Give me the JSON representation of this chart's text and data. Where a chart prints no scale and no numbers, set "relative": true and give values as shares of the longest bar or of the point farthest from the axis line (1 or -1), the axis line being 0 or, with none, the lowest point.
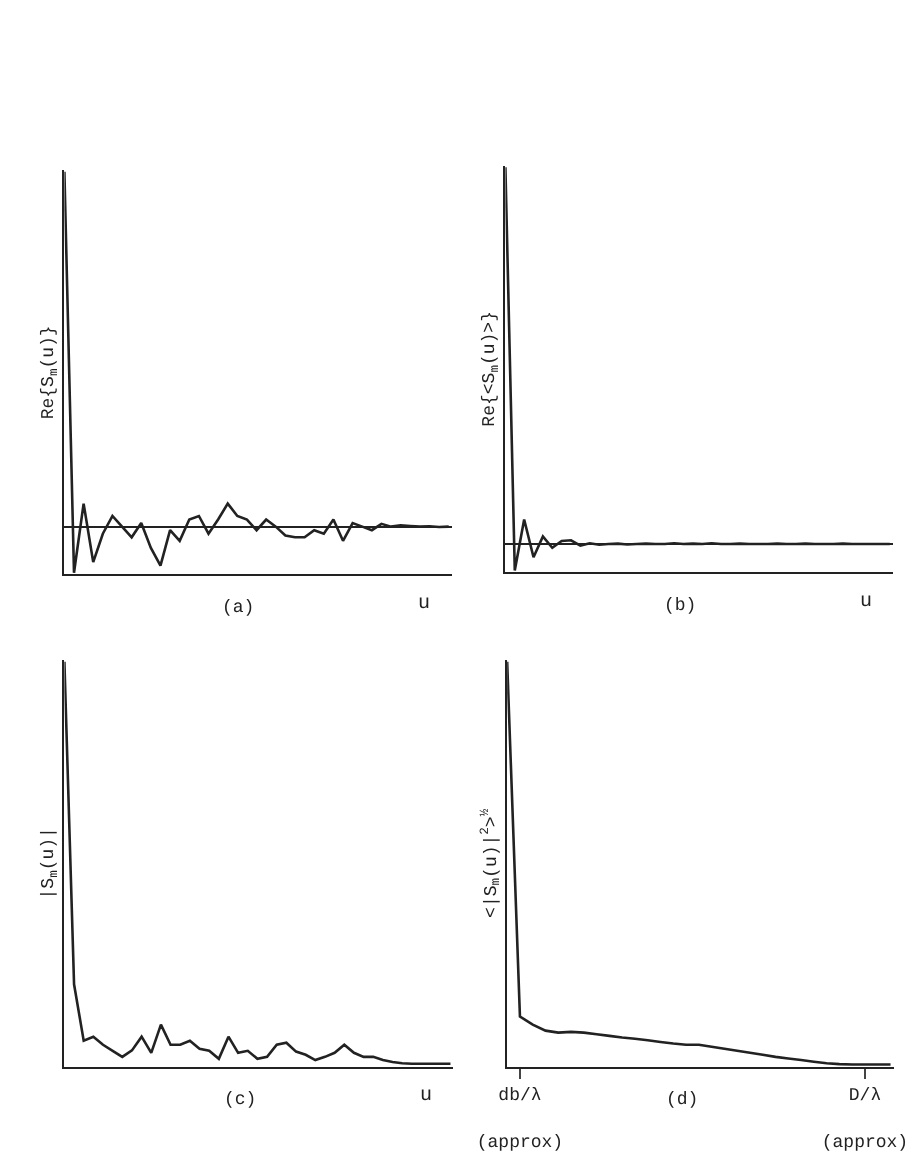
{
  "chart_data": [
    {
      "type": "line",
      "relative": true,
      "title": "(a)",
      "xlabel": "u",
      "ylabel": "Re{S$_{m}$(u)}",
      "categories": [
        null,
        null,
        null,
        null,
        null,
        null,
        null,
        null,
        null,
        null,
        null,
        null,
        null,
        null,
        null,
        null,
        null,
        null,
        null,
        null,
        null,
        null,
        null,
        null,
        null,
        null,
        null,
        null,
        null,
        null,
        null,
        null,
        null,
        null,
        null,
        null,
        null,
        null,
        null,
        null,
        null
      ],
      "series": [
        {
          "color": "#222222",
          "values": [
            1.0,
            -0.13,
            0.065,
            -0.1,
            -0.02,
            0.03,
            0.0,
            -0.03,
            0.01,
            -0.06,
            -0.11,
            -0.01,
            -0.04,
            0.02,
            0.03,
            -0.02,
            0.02,
            0.065,
            0.03,
            0.02,
            -0.01,
            0.02,
            0.0,
            -0.025,
            -0.03,
            -0.03,
            -0.01,
            -0.02,
            0.02,
            -0.04,
            0.01,
            0.0,
            -0.01,
            0.008,
            0.0,
            0.004,
            0.002,
            0.0,
            0.001,
            -0.001,
            0.0
          ]
        }
      ]
    },
    {
      "type": "line",
      "relative": true,
      "title": "(b)",
      "xlabel": "u",
      "ylabel": "Re{<S$_{m}$(u)>}",
      "categories": [
        null,
        null,
        null,
        null,
        null,
        null,
        null,
        null,
        null,
        null,
        null,
        null,
        null,
        null,
        null,
        null,
        null,
        null,
        null,
        null,
        null,
        null,
        null,
        null,
        null,
        null,
        null,
        null,
        null,
        null,
        null,
        null,
        null,
        null,
        null,
        null,
        null,
        null,
        null,
        null,
        null,
        null
      ],
      "series": [
        {
          "color": "#222222",
          "values": [
            1.0,
            -0.07,
            0.065,
            -0.035,
            0.02,
            -0.01,
            0.008,
            0.01,
            -0.004,
            0.002,
            -0.002,
            0.0,
            0.001,
            -0.001,
            0.0,
            0.001,
            0.0,
            0.0,
            0.002,
            0.0,
            0.001,
            0.0,
            0.002,
            0.0,
            0.0,
            0.001,
            0.0,
            0.0,
            0.0,
            0.001,
            0.0,
            0.0,
            0.001,
            0.0,
            0.0,
            0.0,
            0.001,
            0.0,
            0.0,
            0.0,
            0.0,
            0.0
          ]
        }
      ]
    },
    {
      "type": "line",
      "relative": true,
      "title": "(c)",
      "xlabel": "u",
      "ylabel": "|S$_{m}$(u)|",
      "categories": [
        null,
        null,
        null,
        null,
        null,
        null,
        null,
        null,
        null,
        null,
        null,
        null,
        null,
        null,
        null,
        null,
        null,
        null,
        null,
        null,
        null,
        null,
        null,
        null,
        null,
        null,
        null,
        null,
        null,
        null,
        null,
        null,
        null,
        null,
        null,
        null,
        null,
        null,
        null,
        null,
        null
      ],
      "series": [
        {
          "color": "#222222",
          "values": [
            1.0,
            0.2,
            0.06,
            0.07,
            0.05,
            0.035,
            0.02,
            0.036,
            0.07,
            0.03,
            0.1,
            0.05,
            0.05,
            0.06,
            0.04,
            0.035,
            0.015,
            0.07,
            0.03,
            0.035,
            0.015,
            0.02,
            0.05,
            0.055,
            0.033,
            0.025,
            0.012,
            0.02,
            0.03,
            0.05,
            0.03,
            0.02,
            0.02,
            0.012,
            0.007,
            0.004,
            0.003,
            0.003,
            0.003,
            0.003,
            0.003
          ]
        }
      ]
    },
    {
      "type": "line",
      "relative": true,
      "title": "(d)",
      "ylabel": "<|S$_{m}$(u)|$^{2}$>$^{½}$",
      "categories": [
        null,
        "db/λ\n\n(approx)",
        null,
        null,
        null,
        null,
        null,
        null,
        null,
        null,
        null,
        null,
        null,
        null,
        null,
        null,
        null,
        null,
        null,
        null,
        null,
        null,
        null,
        null,
        null,
        null,
        null,
        null,
        "D/λ\n\n(approx)",
        null,
        null
      ],
      "series": [
        {
          "color": "#222222",
          "values": [
            1.0,
            0.12,
            0.1,
            0.085,
            0.08,
            0.082,
            0.08,
            0.076,
            0.072,
            0.068,
            0.065,
            0.061,
            0.057,
            0.053,
            0.05,
            0.05,
            0.045,
            0.04,
            0.035,
            0.03,
            0.025,
            0.02,
            0.016,
            0.012,
            0.008,
            0.004,
            0.002,
            0.001,
            0.001,
            0.001,
            0.001
          ]
        }
      ]
    }
  ]
}
